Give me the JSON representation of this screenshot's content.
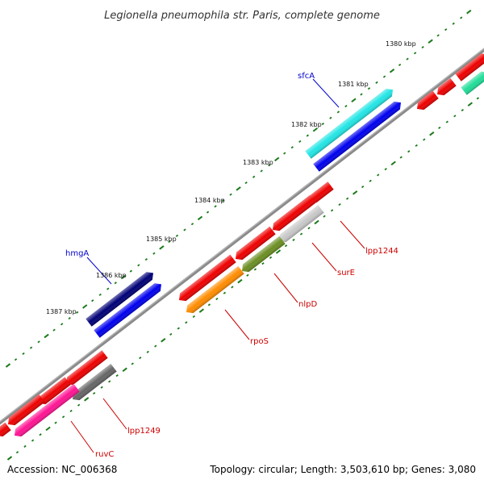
{
  "title": "Legionella pneumophila str. Paris, complete genome",
  "footer": {
    "accession": "Accession: NC_006368",
    "summary": "Topology: circular; Length: 3,503,610 bp; Genes: 3,080"
  },
  "ruler": [
    "1380 kbp",
    "1381 kbp",
    "1382 kbp",
    "1383 kbp",
    "1384 kbp",
    "1385 kbp",
    "1386 kbp",
    "1387 kbp"
  ],
  "gene_labels": [
    {
      "name": "sfcA",
      "color": "#0000cc"
    },
    {
      "name": "hmgA",
      "color": "#0000cc"
    },
    {
      "name": "lpp1244",
      "color": "#cc0000"
    },
    {
      "name": "surE",
      "color": "#cc0000"
    },
    {
      "name": "nlpD",
      "color": "#cc0000"
    },
    {
      "name": "rpoS",
      "color": "#cc0000"
    },
    {
      "name": "lpp1249",
      "color": "#cc0000"
    },
    {
      "name": "ruvC",
      "color": "#cc0000"
    }
  ],
  "colors": {
    "backbone": "#8a8a8a",
    "tick": "#1a7a1a",
    "forward": "#ee0000",
    "cyan": "#22e5e5",
    "blue": "#0000ee",
    "navy": "#000077",
    "green": "#22dd99",
    "gray": "#c8c8c8",
    "olive": "#6b8e23",
    "orange": "#ff8c00",
    "darkgray": "#666666",
    "pink": "#ff1493"
  }
}
